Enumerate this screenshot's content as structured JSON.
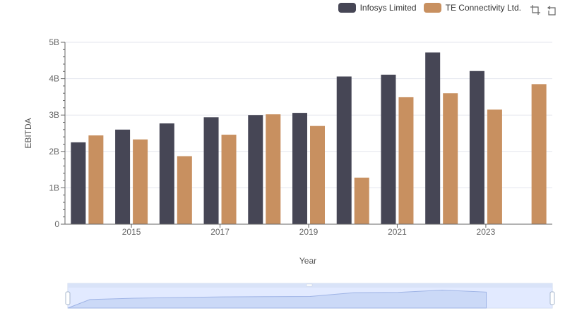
{
  "chart_data": {
    "type": "bar",
    "categories": [
      "2014",
      "2015",
      "2016",
      "2017",
      "2018",
      "2019",
      "2020",
      "2021",
      "2022",
      "2023",
      "2024"
    ],
    "xtick_labels": [
      "2015",
      "2017",
      "2019",
      "2021",
      "2023"
    ],
    "series": [
      {
        "name": "Infosys Limited",
        "color": "#464655",
        "values": [
          2.25,
          2.6,
          2.77,
          2.94,
          3.0,
          3.06,
          4.06,
          4.11,
          4.72,
          4.21,
          null
        ]
      },
      {
        "name": "TE Connectivity Ltd.",
        "color": "#c89060",
        "values": [
          2.44,
          2.33,
          1.87,
          2.46,
          3.02,
          2.7,
          1.28,
          3.49,
          3.6,
          3.15,
          3.85
        ]
      }
    ],
    "ylabel": "EBITDA",
    "xlabel": "Year",
    "yticks": [
      "0",
      "1B",
      "2B",
      "3B",
      "4B",
      "5B"
    ],
    "ylim": [
      0,
      5
    ],
    "grid": true,
    "legend_position": "top-right"
  },
  "toolbox": [
    "zoom-icon",
    "restore-icon"
  ]
}
